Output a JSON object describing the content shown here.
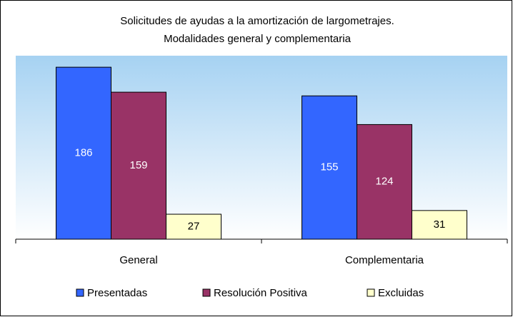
{
  "chart_data": {
    "type": "bar",
    "title": [
      "Solicitudes de ayudas a la amortización de largometrajes.",
      "Modalidades general y complementaria"
    ],
    "categories": [
      "General",
      "Complementaria"
    ],
    "series": [
      {
        "name": "Presentadas",
        "color": "#3366ff",
        "values": [
          186,
          155
        ]
      },
      {
        "name": "Resolución Positiva",
        "color": "#993366",
        "values": [
          159,
          124
        ]
      },
      {
        "name": "Excluidas",
        "color": "#ffffcc",
        "values": [
          27,
          31
        ]
      }
    ],
    "ylim": [
      0,
      200
    ],
    "legend": "bottom"
  }
}
